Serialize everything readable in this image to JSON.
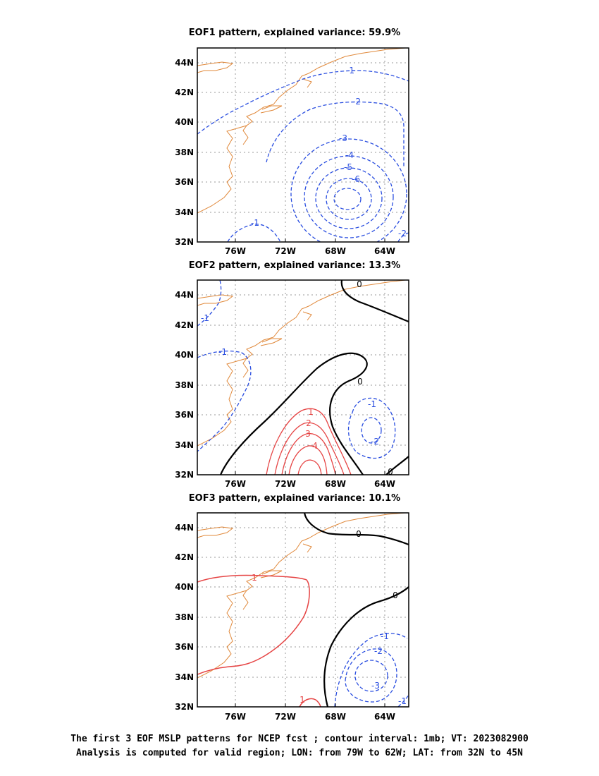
{
  "colors": {
    "coastline": "#e0883a",
    "negative": "#2a4ee0",
    "positive": "#e64545",
    "zero": "#000000",
    "grid": "#9a9a9a"
  },
  "chart_data": {
    "type": "contour-map",
    "region": {
      "lon": [
        -79,
        -62
      ],
      "lat": [
        32,
        45
      ]
    },
    "grid": true,
    "x_ticks": [
      "76W",
      "72W",
      "68W",
      "64W"
    ],
    "y_ticks": [
      "44N",
      "42N",
      "40N",
      "38N",
      "36N",
      "34N",
      "32N"
    ],
    "panels": [
      {
        "title": "EOF1 pattern, explained variance: 59.9%",
        "explained_variance_pct": 59.9,
        "contours": [
          {
            "level": -1,
            "label": "-1"
          },
          {
            "level": -2,
            "label": "-2"
          },
          {
            "level": -3,
            "label": "-3"
          },
          {
            "level": -4,
            "label": "-4"
          },
          {
            "level": -5,
            "label": "-5"
          },
          {
            "level": -6,
            "label": "-6"
          },
          {
            "level": -1,
            "label": "-1"
          },
          {
            "level": -2,
            "label": "-2"
          }
        ]
      },
      {
        "title": "EOF2 pattern, explained variance: 13.3%",
        "explained_variance_pct": 13.3,
        "contours": [
          {
            "level": 0,
            "label": "0"
          },
          {
            "level": 0,
            "label": "0"
          },
          {
            "level": 0,
            "label": "0"
          },
          {
            "level": -1,
            "label": "-1"
          },
          {
            "level": -1,
            "label": "-1"
          },
          {
            "level": -1,
            "label": "-1"
          },
          {
            "level": -2,
            "label": "-2"
          },
          {
            "level": 1,
            "label": "1"
          },
          {
            "level": 2,
            "label": "2"
          },
          {
            "level": 3,
            "label": "3"
          },
          {
            "level": 4,
            "label": "4"
          }
        ]
      },
      {
        "title": "EOF3 pattern, explained variance: 10.1%",
        "explained_variance_pct": 10.1,
        "contours": [
          {
            "level": 0,
            "label": "0"
          },
          {
            "level": 0,
            "label": "0"
          },
          {
            "level": 1,
            "label": "1"
          },
          {
            "level": 1,
            "label": "1"
          },
          {
            "level": -1,
            "label": "-1"
          },
          {
            "level": -2,
            "label": "-2"
          },
          {
            "level": -3,
            "label": "-3"
          },
          {
            "level": -1,
            "label": "-1"
          }
        ]
      }
    ]
  },
  "footer": {
    "line1": "The first 3 EOF MSLP patterns for NCEP fcst ; contour interval: 1mb; VT: 2023082900",
    "line2": "Analysis is computed for valid region; LON: from 79W to 62W; LAT: from 32N to 45N"
  }
}
